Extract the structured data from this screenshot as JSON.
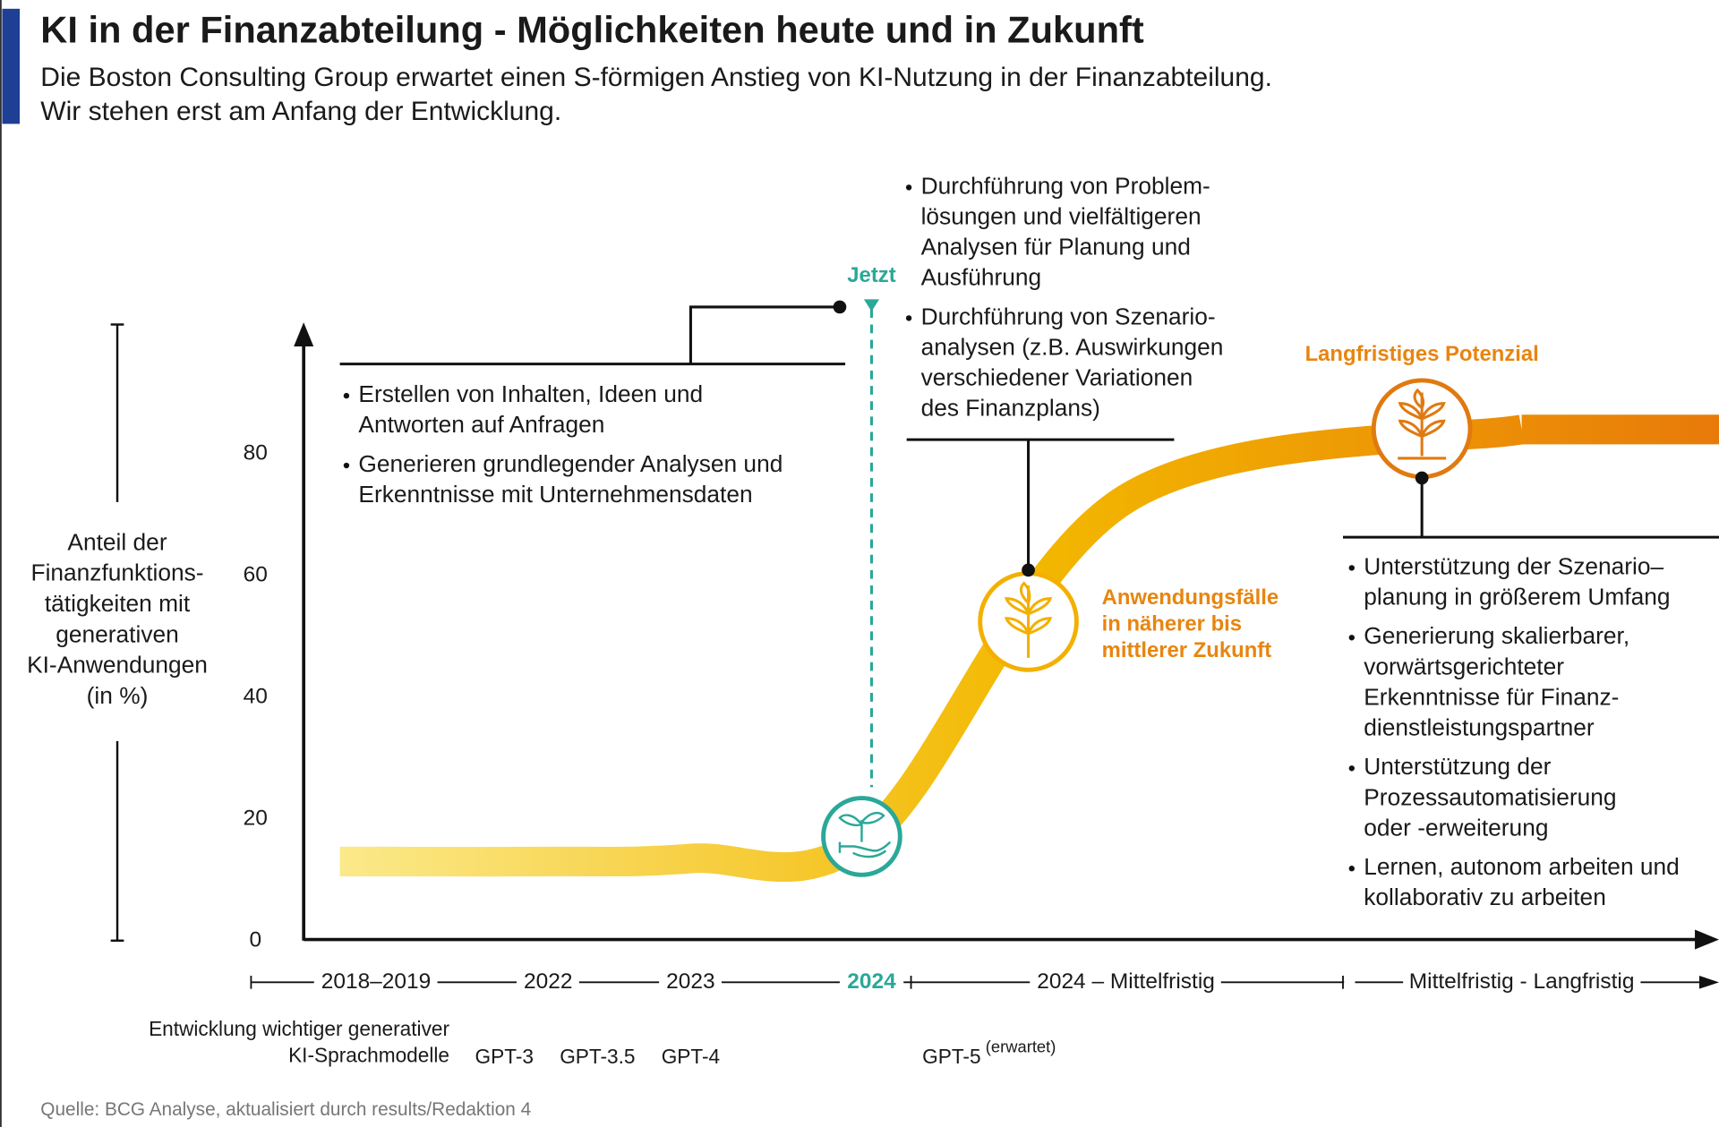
{
  "chart_data": {
    "type": "line",
    "title": "KI in der Finanzabteilung - Möglichkeiten heute und in Zukunft",
    "subtitle": [
      "Die Boston Consulting Group erwartet einen S-förmigen Anstieg von KI-Nutzung in der Finanzabteilung.",
      "Wir stehen erst am Anfang der Entwicklung."
    ],
    "y_label": [
      "Anteil der",
      "Finanzfunktions-",
      "tätigkeiten mit",
      "generativen",
      "KI-Anwendungen",
      "(in %)"
    ],
    "categories": [
      "2018–2019",
      "2022",
      "2023",
      "2024",
      "2024 – Mittelfristig",
      "Mittelfristig - Langfristig"
    ],
    "values": [
      13,
      13,
      13.5,
      17.6,
      72.6,
      84
    ],
    "colors": [
      "#fbe98a",
      "#f3b800",
      "#e87a0a"
    ],
    "ylim": [
      0,
      100
    ],
    "yticks": [
      0,
      20,
      40,
      60,
      80
    ],
    "annotations": {
      "now": "Jetzt",
      "near_term": [
        "Anwendungsfälle",
        "in näherer bis",
        "mittlerer Zukunft"
      ],
      "long_term": "Langfristiges Potenzial",
      "bullets_current": [
        [
          "Erstellen von Inhalten, Ideen und",
          "Antworten auf Anfragen"
        ],
        [
          "Generieren grundlegender Analysen und",
          "Erkenntnisse mit Unternehmensdaten"
        ]
      ],
      "bullets_near": [
        [
          "Durchführung von Problem-",
          "lösungen und vielfältigeren",
          "Analysen für Planung und",
          "Ausführung"
        ],
        [
          "Durchführung von Szenario-",
          "analysen (z.B. Auswirkungen",
          "verschiedener Variationen",
          "des Finanzplans)"
        ]
      ],
      "bullets_long": [
        [
          "Unterstützung der Szenario–",
          "planung in größerem Umfang"
        ],
        [
          "Generierung skalierbarer,",
          "vorwärtsgerichteter",
          "Erkenntnisse für Finanz-",
          "dienstleistungspartner"
        ],
        [
          "Unterstützung der",
          "Prozessautomatisierung",
          "oder -erweiterung"
        ],
        [
          "Lernen, autonom arbeiten und",
          "kollaborativ zu arbeiten"
        ]
      ]
    },
    "models_label": [
      "Entwicklung wichtiger generativer",
      "KI-Sprachmodelle"
    ],
    "models": [
      "GPT-3",
      "GPT-3.5",
      "GPT-4",
      "GPT-5"
    ],
    "models_note": "(erwartet)",
    "source": "Quelle: BCG Analyse, aktualisiert durch results/Redaktion 4"
  }
}
